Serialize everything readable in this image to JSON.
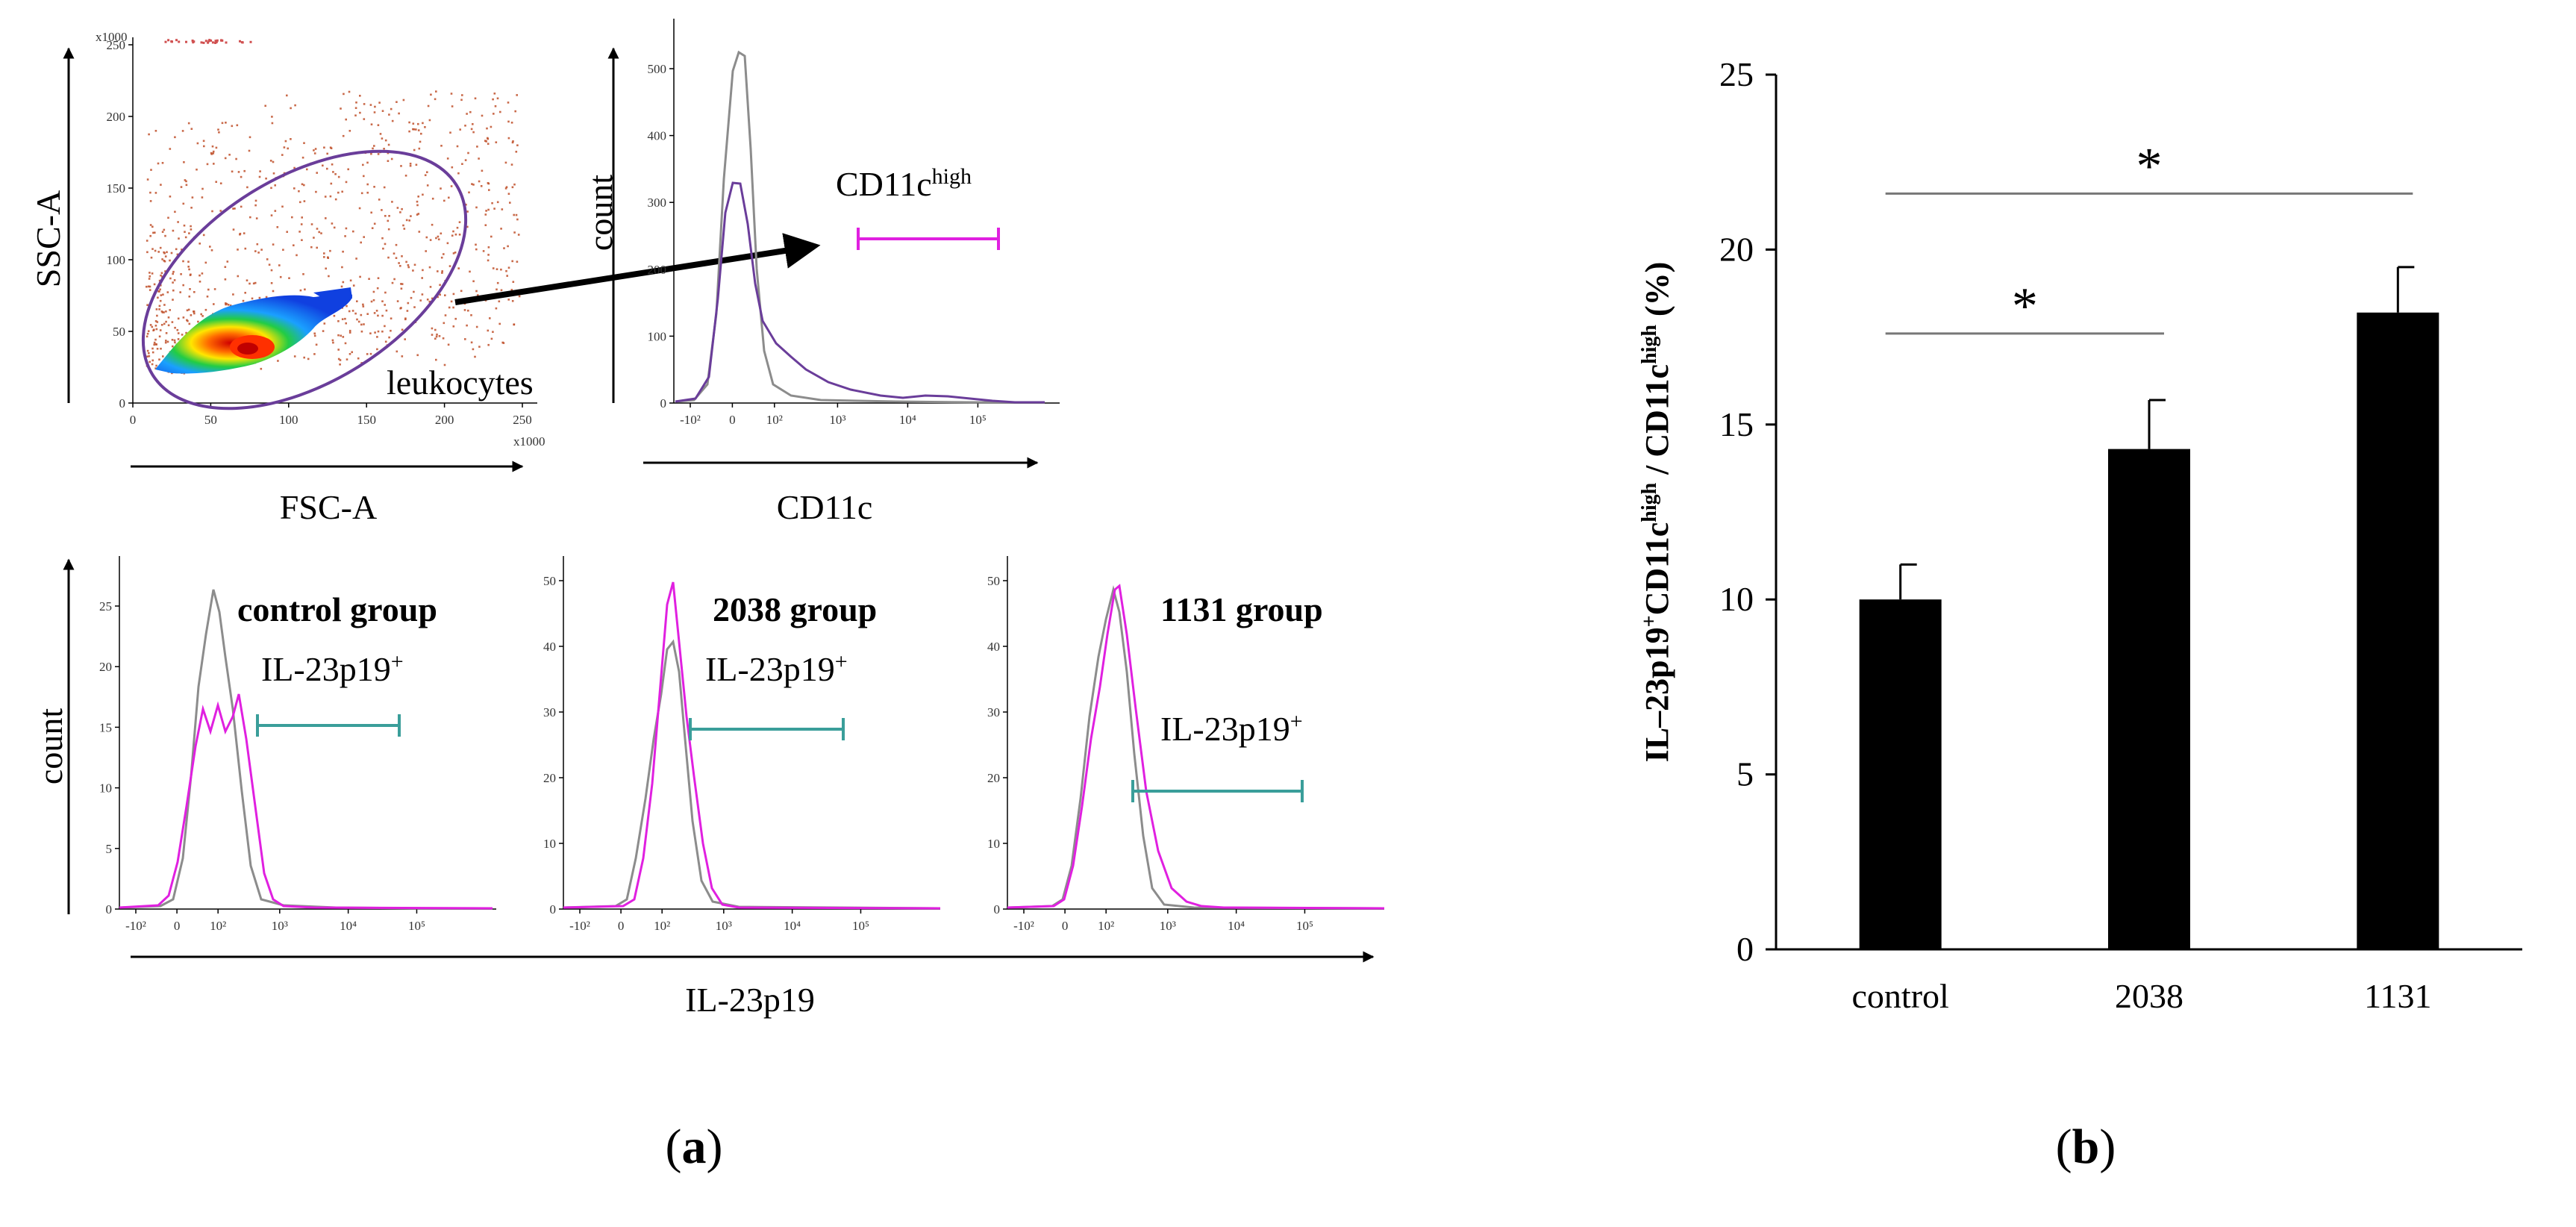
{
  "panel_a": {
    "scatter": {
      "xlabel": "FSC-A",
      "ylabel": "SSC-A",
      "multiplier": "x1000",
      "xticks": [
        "0",
        "50",
        "100",
        "150",
        "200",
        "250"
      ],
      "yticks": [
        "0",
        "50",
        "100",
        "150",
        "200",
        "250"
      ],
      "gate_label": "leukocytes"
    },
    "cd11c": {
      "xlabel": "CD11c",
      "ylabel": "count",
      "yticks": [
        "0",
        "100",
        "200",
        "300",
        "400",
        "500"
      ],
      "xticks": [
        "-10²",
        "0",
        "10²",
        "10³",
        "10⁴",
        "10⁵"
      ],
      "gate_main": "CD11c",
      "gate_sup": "high"
    },
    "il23": {
      "xlabel": "IL-23p19",
      "ylabel": "count",
      "gate_main": "IL-23p19",
      "gate_sup": "+",
      "xticks": [
        "-10²",
        "0",
        "10²",
        "10³",
        "10⁴",
        "10⁵"
      ],
      "groups": [
        {
          "name": "control group",
          "yticks": [
            "0",
            "5",
            "10",
            "15",
            "20",
            "25"
          ]
        },
        {
          "name": "2038 group",
          "yticks": [
            "0",
            "10",
            "20",
            "30",
            "40",
            "50"
          ]
        },
        {
          "name": "1131 group",
          "yticks": [
            "0",
            "10",
            "20",
            "30",
            "40",
            "50"
          ]
        }
      ]
    },
    "caption": "a"
  },
  "panel_b": {
    "ylabel_parts": [
      {
        "t": "IL–23p19",
        "sup": false
      },
      {
        "t": "+",
        "sup": true
      },
      {
        "t": "CD11c",
        "sup": false
      },
      {
        "t": "high",
        "sup": true
      },
      {
        "t": " / CD11c",
        "sup": false
      },
      {
        "t": "high",
        "sup": true
      },
      {
        "t": " (%)",
        "sup": false
      }
    ],
    "caption": "b",
    "significance": [
      {
        "from": "control",
        "to": "2038",
        "label": "*"
      },
      {
        "from": "control",
        "to": "1131",
        "label": "*"
      }
    ]
  },
  "chart_data": {
    "type": "bar",
    "categories": [
      "control",
      "2038",
      "1131"
    ],
    "values": [
      10.0,
      14.3,
      18.2
    ],
    "errors": [
      1.0,
      1.4,
      1.3
    ],
    "ylim": [
      0,
      25
    ],
    "yticks": [
      0,
      5,
      10,
      15,
      20,
      25
    ],
    "xlabel": "",
    "ylabel": "IL–23p19+CD11chigh / CD11chigh (%)",
    "bar_color": "#000000"
  },
  "colors": {
    "purple": "#6A3D9A",
    "magenta": "#E020E0",
    "teal": "#3A9E9A",
    "grey": "#8C8C8C"
  }
}
